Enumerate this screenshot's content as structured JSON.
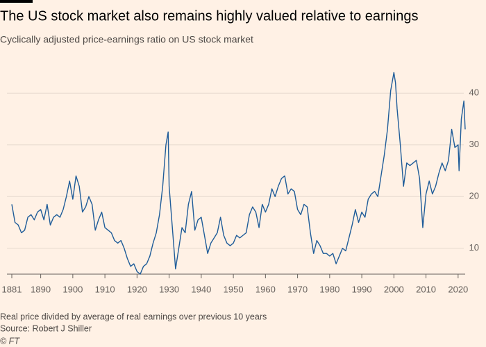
{
  "chart_data": {
    "type": "line",
    "title": "The US stock market also remains highly valued relative to earnings",
    "subtitle": "Cyclically adjusted price-earnings ratio on US stock market",
    "footnote": "Real price divided by average of real earnings over previous 10 years",
    "source": "Source: Robert J Shiller",
    "credit": "© FT",
    "color": "#1f5c99",
    "grid": true,
    "xlim": [
      1881,
      2022.2
    ],
    "ylim": [
      5,
      45
    ],
    "xticks": [
      1881,
      1890,
      1900,
      1910,
      1920,
      1930,
      1940,
      1950,
      1960,
      1970,
      1980,
      1990,
      2000,
      2010,
      2020
    ],
    "yticks": [
      10,
      20,
      30,
      40
    ],
    "x": [
      1881,
      1882,
      1883,
      1884,
      1885,
      1886,
      1887,
      1888,
      1889,
      1890,
      1891,
      1892,
      1893,
      1894,
      1895,
      1896,
      1897,
      1898,
      1899,
      1900,
      1901,
      1902,
      1903,
      1904,
      1905,
      1906,
      1907,
      1908,
      1909,
      1910,
      1911,
      1912,
      1913,
      1914,
      1915,
      1916,
      1917,
      1918,
      1919,
      1920,
      1921,
      1922,
      1923,
      1924,
      1925,
      1926,
      1927,
      1928,
      1929,
      1929.7,
      1930,
      1931,
      1932,
      1933,
      1934,
      1935,
      1936,
      1937,
      1938,
      1939,
      1940,
      1941,
      1942,
      1943,
      1944,
      1945,
      1946,
      1947,
      1948,
      1949,
      1950,
      1951,
      1952,
      1953,
      1954,
      1955,
      1956,
      1957,
      1958,
      1959,
      1960,
      1961,
      1962,
      1963,
      1964,
      1965,
      1966,
      1967,
      1968,
      1969,
      1970,
      1971,
      1972,
      1973,
      1974,
      1975,
      1976,
      1977,
      1978,
      1979,
      1980,
      1981,
      1982,
      1983,
      1984,
      1985,
      1986,
      1987,
      1988,
      1989,
      1990,
      1991,
      1992,
      1993,
      1994,
      1995,
      1996,
      1997,
      1998,
      1999,
      2000,
      2000.5,
      2001,
      2002,
      2003,
      2004,
      2005,
      2006,
      2007,
      2008,
      2009,
      2010,
      2011,
      2012,
      2013,
      2014,
      2015,
      2016,
      2017,
      2018,
      2019,
      2020,
      2020.3,
      2021,
      2021.8,
      2022.2
    ],
    "values": [
      18.5,
      15,
      14.5,
      13,
      13.5,
      16,
      16.5,
      15.5,
      17,
      17.5,
      15.5,
      18.5,
      14.5,
      16,
      16.5,
      16,
      17.5,
      20,
      23,
      19.5,
      24,
      22,
      17,
      18,
      20,
      18.5,
      13.5,
      15.5,
      17,
      14,
      13.5,
      13,
      11.5,
      11,
      11.5,
      10,
      8,
      6.5,
      7,
      5.5,
      5,
      6.5,
      7,
      8.5,
      11,
      13,
      16.5,
      22,
      30,
      32.5,
      22,
      14,
      6,
      10,
      14,
      13,
      18.5,
      21,
      13.5,
      15.5,
      16,
      12.5,
      9,
      11,
      12,
      13,
      16,
      12.5,
      11,
      10.5,
      11,
      12.5,
      12,
      12.5,
      13,
      16.5,
      18,
      17,
      14,
      18.5,
      17,
      18.5,
      21.5,
      20,
      22,
      23.5,
      24,
      20.5,
      21.5,
      21,
      17.5,
      16.5,
      18.5,
      18,
      13,
      9,
      11.5,
      10.5,
      9,
      9,
      8.5,
      9,
      7,
      8.5,
      10,
      9.5,
      12,
      14.5,
      17.5,
      15,
      17,
      16,
      19.5,
      20.5,
      21,
      20,
      24,
      28,
      33,
      40.5,
      44,
      42,
      37,
      30,
      22,
      26.5,
      26,
      26.5,
      27,
      23.5,
      14,
      20.5,
      23,
      20.5,
      22,
      24.5,
      26.5,
      25,
      27,
      33,
      29.5,
      30,
      25,
      35,
      38.5,
      33
    ]
  }
}
